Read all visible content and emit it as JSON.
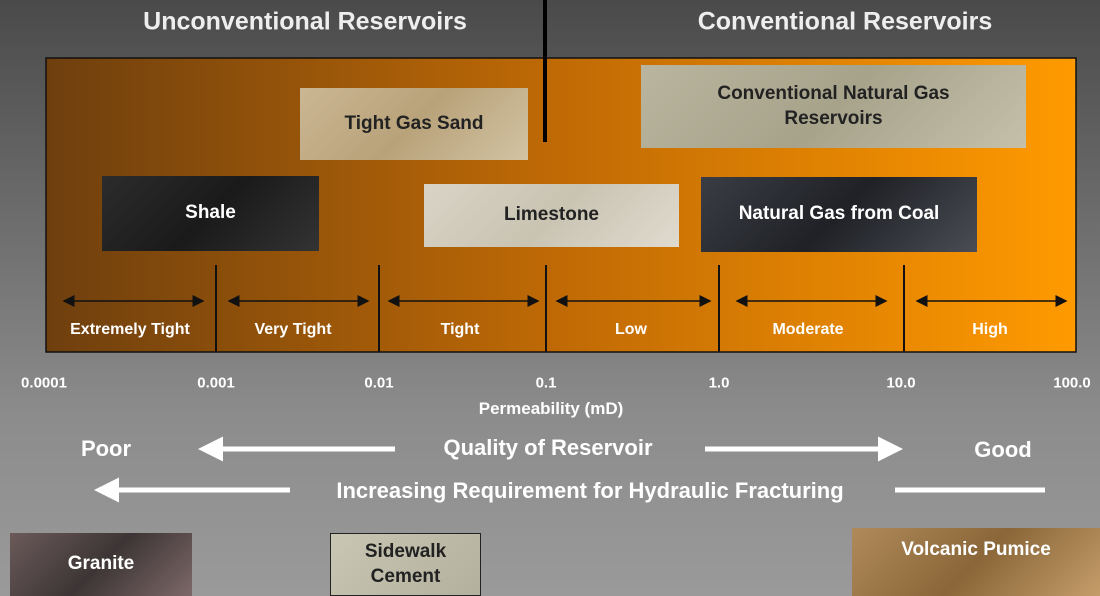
{
  "header": {
    "left": "Unconventional Reservoirs",
    "right": "Conventional Reservoirs"
  },
  "rocks": [
    {
      "label": "Tight Gas Sand"
    },
    {
      "label": "Conventional Natural Gas Reservoirs"
    },
    {
      "label": "Shale"
    },
    {
      "label": "Limestone"
    },
    {
      "label": "Natural Gas from Coal"
    }
  ],
  "classes": [
    "Extremely Tight",
    "Very Tight",
    "Tight",
    "Low",
    "Moderate",
    "High"
  ],
  "ticks": [
    "0.0001",
    "0.001",
    "0.01",
    "0.1",
    "1.0",
    "10.0",
    "100.0"
  ],
  "axis_label": "Permeability (mD)",
  "quality": {
    "poor": "Poor",
    "label": "Quality of Reservoir",
    "good": "Good"
  },
  "fracturing": "Increasing Requirement for Hydraulic Fracturing",
  "samples": [
    "Granite",
    "Sidewalk Cement",
    "Volcanic Pumice"
  ]
}
